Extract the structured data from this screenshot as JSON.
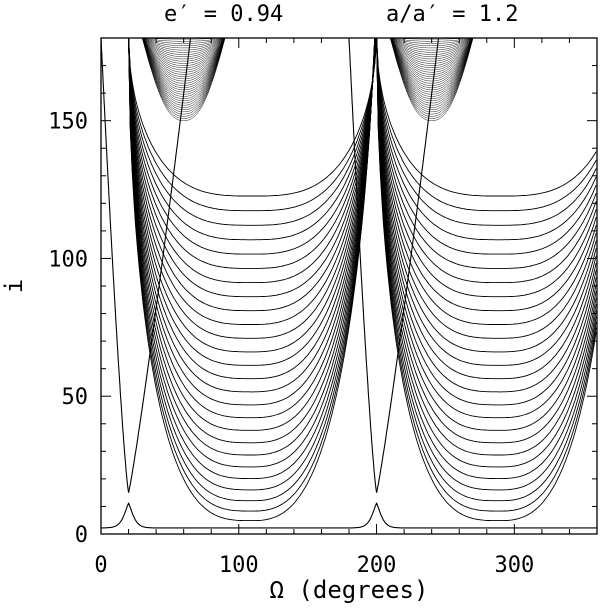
{
  "chart_data": {
    "type": "contour",
    "title_left": "e′ = 0.94",
    "title_right": "a/a′ = 1.2",
    "xlabel": "Ω (degrees)",
    "ylabel": "i",
    "xlim": [
      0,
      360
    ],
    "ylim": [
      0,
      180
    ],
    "x_ticks": [
      0,
      100,
      200,
      300
    ],
    "y_ticks": [
      0,
      50,
      100,
      150
    ],
    "x_tick_labels": [
      "0",
      "100",
      "200",
      "300"
    ],
    "y_tick_labels": [
      "0",
      "50",
      "100",
      "150"
    ],
    "line_color": "#000000",
    "period_deg": 180,
    "separatrix_base_deg": [
      20,
      200
    ],
    "separatrix_top_deg": [
      65,
      245
    ],
    "separatrix_minimum_i": 15,
    "cusp_peak_i": 9,
    "lobe_center_omega_deg": [
      120,
      300
    ],
    "lobe_innermost_top_i": 128,
    "contour_count": 26
  }
}
